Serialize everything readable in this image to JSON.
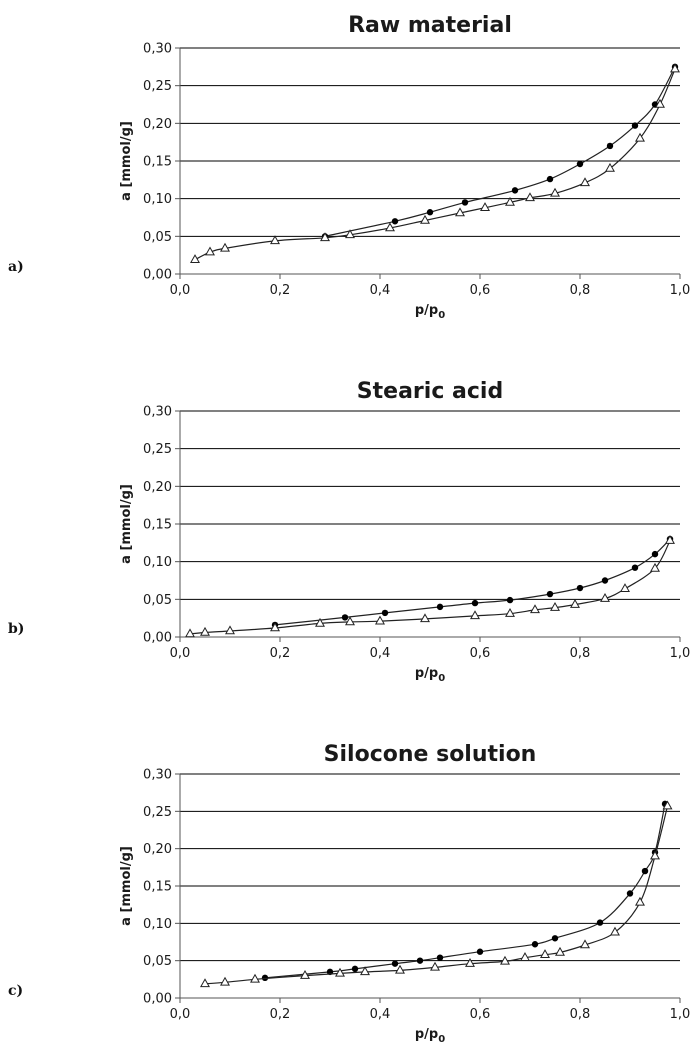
{
  "chart_data": [
    {
      "type": "line",
      "panel_label": "a)",
      "title": "Raw material",
      "xlabel": "p/p",
      "xlabel_sub": "0",
      "ylabel": "a [mmol/g]",
      "xlim": [
        0,
        1.0
      ],
      "ylim": [
        0,
        0.3
      ],
      "x_ticks": [
        "0,0",
        "0,2",
        "0,4",
        "0,6",
        "0,8",
        "1,0"
      ],
      "y_ticks": [
        "0,00",
        "0,05",
        "0,10",
        "0,15",
        "0,20",
        "0,25",
        "0,30"
      ],
      "grid": "horizontal",
      "series": [
        {
          "marker": "circle",
          "x": [
            0.29,
            0.43,
            0.5,
            0.57,
            0.67,
            0.74,
            0.8,
            0.86,
            0.91,
            0.95,
            0.99
          ],
          "y": [
            0.05,
            0.07,
            0.082,
            0.095,
            0.111,
            0.126,
            0.146,
            0.17,
            0.197,
            0.225,
            0.275
          ]
        },
        {
          "marker": "triangle",
          "x": [
            0.03,
            0.06,
            0.09,
            0.19,
            0.29,
            0.34,
            0.42,
            0.49,
            0.56,
            0.61,
            0.66,
            0.7,
            0.75,
            0.81,
            0.86,
            0.92,
            0.96,
            0.99
          ],
          "y": [
            0.019,
            0.029,
            0.034,
            0.044,
            0.048,
            0.052,
            0.061,
            0.071,
            0.081,
            0.088,
            0.095,
            0.101,
            0.107,
            0.121,
            0.14,
            0.18,
            0.225,
            0.272
          ]
        }
      ]
    },
    {
      "type": "line",
      "panel_label": "b)",
      "title": "Stearic acid",
      "xlabel": "p/p",
      "xlabel_sub": "0",
      "ylabel": "a [mmol/g]",
      "xlim": [
        0,
        1.0
      ],
      "ylim": [
        0,
        0.3
      ],
      "x_ticks": [
        "0,0",
        "0,2",
        "0,4",
        "0,6",
        "0,8",
        "1,0"
      ],
      "y_ticks": [
        "0,00",
        "0,05",
        "0,10",
        "0,15",
        "0,20",
        "0,25",
        "0,30"
      ],
      "grid": "horizontal",
      "series": [
        {
          "marker": "circle",
          "x": [
            0.19,
            0.33,
            0.41,
            0.52,
            0.59,
            0.66,
            0.74,
            0.8,
            0.85,
            0.91,
            0.95,
            0.98
          ],
          "y": [
            0.016,
            0.026,
            0.032,
            0.04,
            0.045,
            0.049,
            0.057,
            0.065,
            0.075,
            0.092,
            0.11,
            0.13
          ]
        },
        {
          "marker": "triangle",
          "x": [
            0.02,
            0.05,
            0.1,
            0.19,
            0.28,
            0.34,
            0.4,
            0.49,
            0.59,
            0.66,
            0.71,
            0.75,
            0.79,
            0.85,
            0.89,
            0.95,
            0.98
          ],
          "y": [
            0.004,
            0.006,
            0.008,
            0.012,
            0.018,
            0.02,
            0.021,
            0.024,
            0.028,
            0.031,
            0.036,
            0.039,
            0.043,
            0.051,
            0.064,
            0.091,
            0.128
          ]
        }
      ]
    },
    {
      "type": "line",
      "panel_label": "c)",
      "title": "Silocone solution",
      "xlabel": "p/p",
      "xlabel_sub": "0",
      "ylabel": "a [mmol/g]",
      "xlim": [
        0,
        1.0
      ],
      "ylim": [
        0,
        0.3
      ],
      "x_ticks": [
        "0,0",
        "0,2",
        "0,4",
        "0,6",
        "0,8",
        "1,0"
      ],
      "y_ticks": [
        "0,00",
        "0,05",
        "0,10",
        "0,15",
        "0,20",
        "0,25",
        "0,30"
      ],
      "grid": "horizontal",
      "series": [
        {
          "marker": "circle",
          "x": [
            0.17,
            0.3,
            0.35,
            0.43,
            0.48,
            0.52,
            0.6,
            0.71,
            0.75,
            0.84,
            0.9,
            0.93,
            0.95,
            0.97
          ],
          "y": [
            0.027,
            0.035,
            0.039,
            0.046,
            0.05,
            0.054,
            0.062,
            0.072,
            0.08,
            0.101,
            0.14,
            0.17,
            0.195,
            0.26
          ]
        },
        {
          "marker": "triangle",
          "x": [
            0.05,
            0.09,
            0.15,
            0.25,
            0.32,
            0.37,
            0.44,
            0.51,
            0.58,
            0.65,
            0.69,
            0.73,
            0.76,
            0.81,
            0.87,
            0.92,
            0.95,
            0.975
          ],
          "y": [
            0.019,
            0.021,
            0.025,
            0.03,
            0.033,
            0.035,
            0.037,
            0.041,
            0.046,
            0.049,
            0.054,
            0.058,
            0.061,
            0.071,
            0.088,
            0.128,
            0.19,
            0.257
          ]
        }
      ]
    }
  ]
}
